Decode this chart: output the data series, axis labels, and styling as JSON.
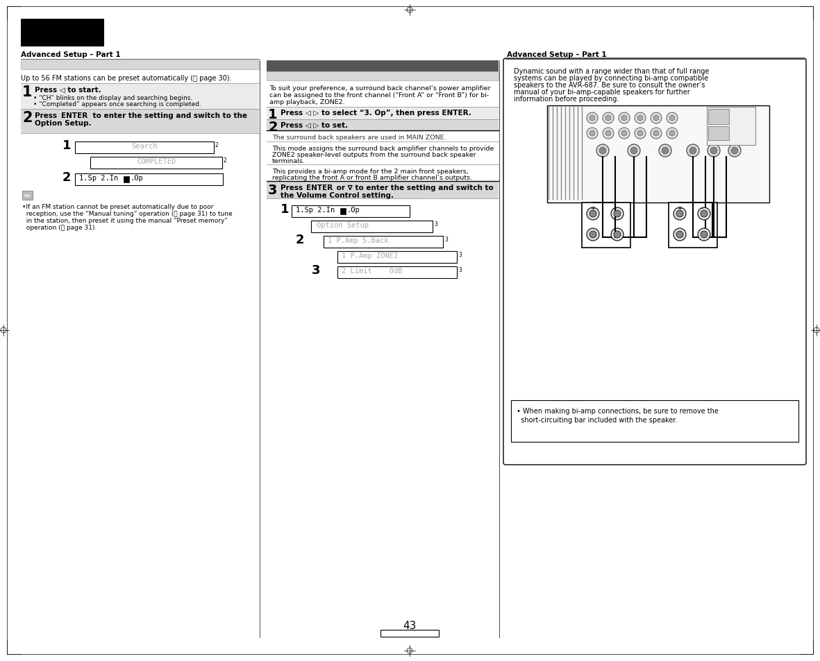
{
  "page_bg": "#ffffff",
  "page_number": "43",
  "header_text": "Advanced Setup – Part 1",
  "right_header_text": "Advanced Setup – Part 1",
  "col1_intro": "Up to 56 FM stations can be preset automatically (⨡ page 30).",
  "col1_step1_bold": "Press ◁ to start.",
  "col1_step1_b1": "• “CH” blinks on the display and searching begins.",
  "col1_step1_b2": "• “Completed” appears once searching is completed.",
  "col1_step2_line1": "Press ENTER to enter the setting and switch to the",
  "col1_step2_line2": "Option Setup.",
  "col1_display1": "Search",
  "col1_display2": "COMPLETED",
  "col1_display3a": "1.Sp 2.In ",
  "col1_display3b": ".Op",
  "col1_note_line1": "•If an FM station cannot be preset automatically due to poor",
  "col1_note_line2": "  reception, use the “Manual tuning” operation (⨡ page 31) to tune",
  "col1_note_line3": "  in the station, then preset it using the manual “Preset memory”",
  "col1_note_line4": "  operation (⨡ page 31).",
  "col2_intro_line1": "To suit your preference, a surround back channel’s power amplifier",
  "col2_intro_line2": "can be assigned to the front channel (“Front A” or “Front B”) for bi-",
  "col2_intro_line3": "amp playback, ZONE2.",
  "col2_step1": "Press ◁ ▷ to select “3. Op”, then press ENTER.",
  "col2_step2": "Press ◁ ▷ to set.",
  "col2_info1": "The surround back speakers are used in MAIN ZONE.",
  "col2_info2a": "This mode assigns the surround back amplifier channels to provide",
  "col2_info2b": "ZONE2 speaker-level outputs from the surround back speaker",
  "col2_info2c": "terminals.",
  "col2_info3a": "This provides a bi-amp mode for the 2 main front speakers,",
  "col2_info3b": "replicating the front A or front B amplifier channel’s outputs.",
  "col2_step3a": "Press ENTER or ∇ to enter the setting and switch to",
  "col2_step3b": "the Volume Control setting.",
  "col2_disp1a": "1.Sp 2.In ",
  "col2_disp1b": ".Op",
  "col2_disp2": "Option Setup",
  "col2_disp3": "1 P.Amp S.Back",
  "col2_disp4": "1 P.Amp ZONE2",
  "col2_disp5": "2 Limit    0dB",
  "col3_intro1": "Dynamic sound with a range wider than that of full range",
  "col3_intro2": "systems can be played by connecting bi-amp compatible",
  "col3_intro3": "speakers to the AVR-687. Be sure to consult the owner’s",
  "col3_intro4": "manual of your bi-amp-capable speakers for further",
  "col3_intro5": "information before proceeding.",
  "col3_note1": "• When making bi-amp connections, be sure to remove the",
  "col3_note2": "  short-circuiting bar included with the speaker.",
  "gray_dark": "#555555",
  "gray_mid": "#aaaaaa",
  "gray_light": "#d8d8d8",
  "gray_lighter": "#ebebeb",
  "gray_box": "#f2f2f2"
}
